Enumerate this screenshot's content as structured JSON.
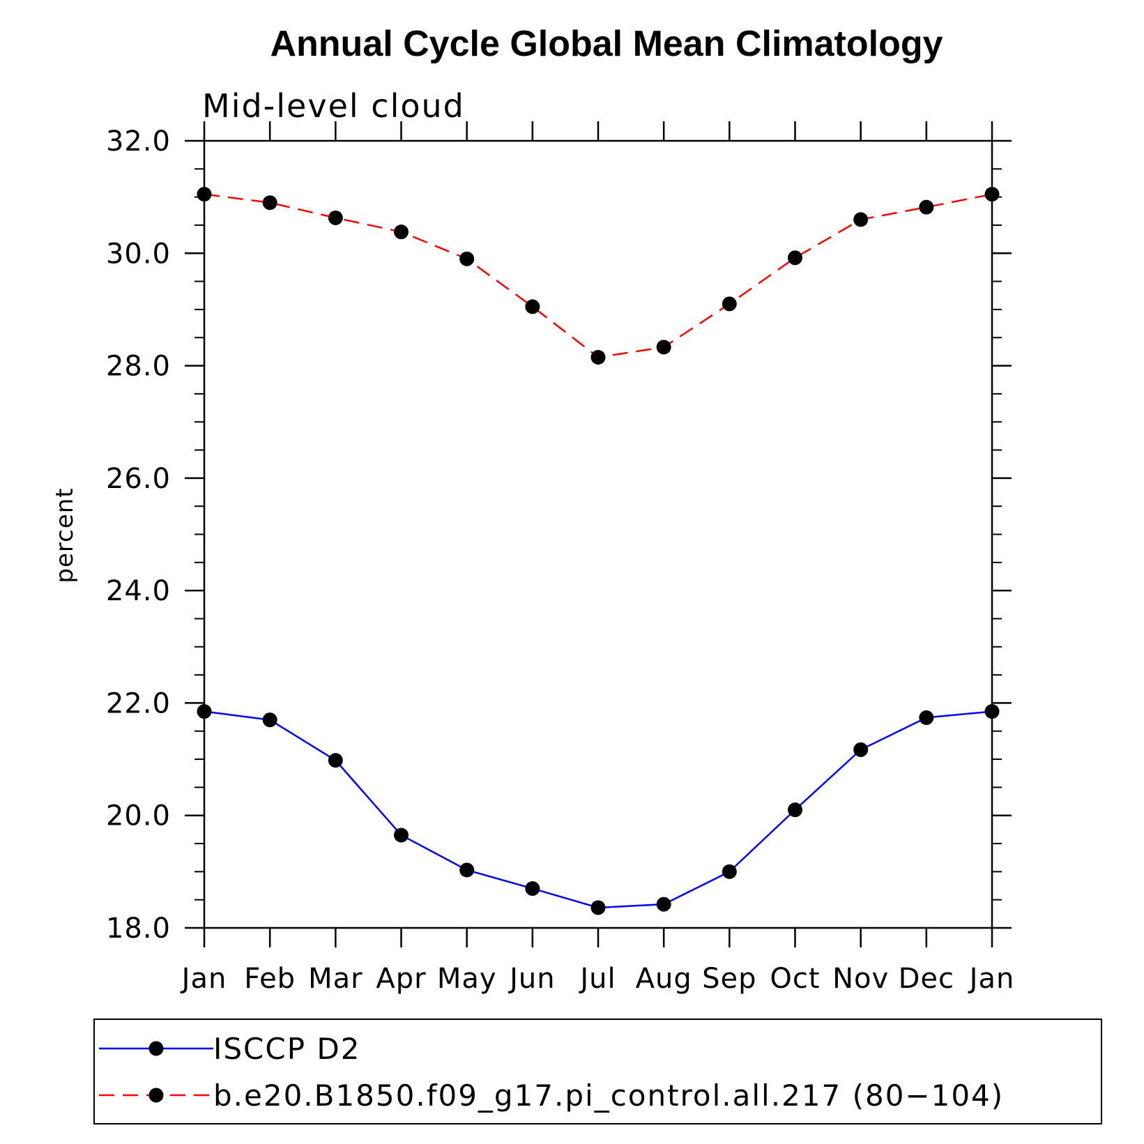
{
  "chart_data": {
    "type": "line",
    "title": "Annual Cycle Global Mean Climatology",
    "subtitle": "Mid-level cloud",
    "xlabel": "",
    "ylabel": "percent",
    "categories": [
      "Jan",
      "Feb",
      "Mar",
      "Apr",
      "May",
      "Jun",
      "Jul",
      "Aug",
      "Sep",
      "Oct",
      "Nov",
      "Dec",
      "Jan"
    ],
    "ylim": [
      18.0,
      32.0
    ],
    "yticks": [
      "18.0",
      "20.0",
      "22.0",
      "24.0",
      "26.0",
      "28.0",
      "30.0",
      "32.0"
    ],
    "ytick_values": [
      18,
      20,
      22,
      24,
      26,
      28,
      30,
      32
    ],
    "y_minor_step": 0.5,
    "grid": false,
    "legend_position": "bottom",
    "series": [
      {
        "name": "ISCCP D2",
        "color": "#0000ff",
        "line_style": "solid",
        "marker": "filled-circle",
        "values": [
          21.85,
          21.7,
          20.98,
          19.65,
          19.03,
          18.7,
          18.36,
          18.42,
          19.0,
          20.1,
          21.17,
          21.74,
          21.85
        ]
      },
      {
        "name": "b.e20.B1850.f09_g17.pi_control.all.217 (80−104)",
        "color": "#ff0000",
        "line_style": "dashed",
        "marker": "filled-circle",
        "values": [
          31.05,
          30.9,
          30.63,
          30.38,
          29.9,
          29.05,
          28.15,
          28.33,
          29.1,
          29.92,
          30.6,
          30.82,
          31.05
        ]
      }
    ]
  }
}
